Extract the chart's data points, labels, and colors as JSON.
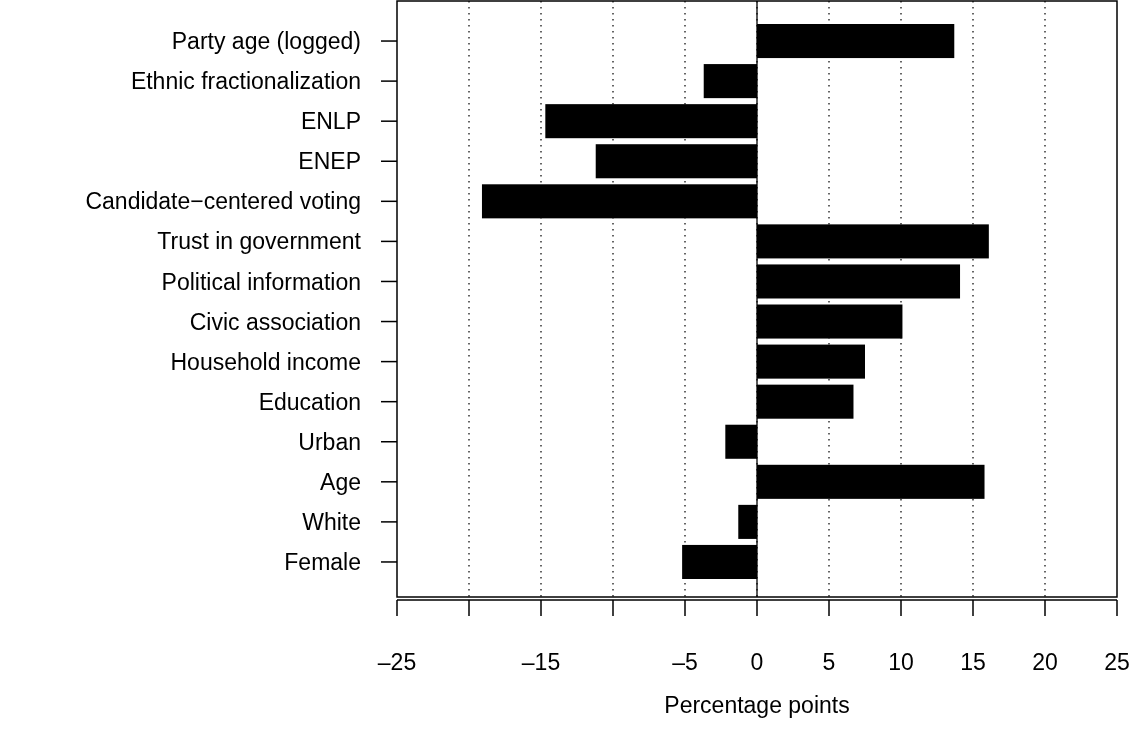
{
  "chart_data": {
    "type": "bar",
    "orientation": "horizontal",
    "xlabel": "Percentage points",
    "categories": [
      "Party age (logged)",
      "Ethnic fractionalization",
      "ENLP",
      "ENEP",
      "Candidate−centered voting",
      "Trust in government",
      "Political information",
      "Civic association",
      "Household income",
      "Education",
      "Urban",
      "Age",
      "White",
      "Female"
    ],
    "values": [
      13.7,
      -3.7,
      -14.7,
      -11.2,
      -19.1,
      16.1,
      14.1,
      10.1,
      7.5,
      6.7,
      -2.2,
      15.8,
      -1.3,
      -5.2
    ],
    "color": "#000000",
    "xlim": [
      -25,
      25
    ],
    "xticks": [
      {
        "value": -25,
        "label": "–25"
      },
      {
        "value": -20,
        "label": null
      },
      {
        "value": -15,
        "label": "–15"
      },
      {
        "value": -10,
        "label": null
      },
      {
        "value": -5,
        "label": "–5"
      },
      0,
      5,
      10,
      15,
      20,
      25
    ],
    "grid": "x",
    "ref_lines": [
      {
        "axis": "x",
        "value": 0,
        "color": "#000000",
        "line_style": "solid"
      }
    ]
  }
}
